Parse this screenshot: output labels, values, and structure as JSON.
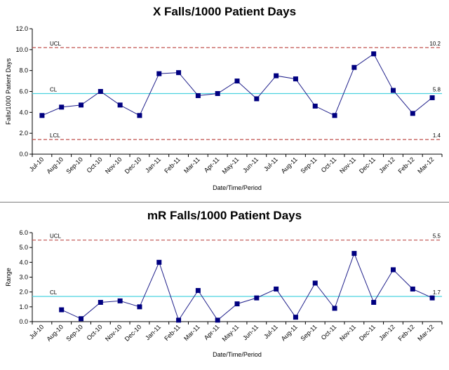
{
  "chart_data": [
    {
      "type": "line",
      "title": "X Falls/1000 Patient Days",
      "xlabel": "Date/Time/Period",
      "ylabel": "Falls/1000 Patient Days",
      "ylim": [
        0,
        12
      ],
      "yticks": [
        "0.0",
        "2.0",
        "4.0",
        "6.0",
        "8.0",
        "10.0",
        "12.0"
      ],
      "categories": [
        "Jul-10",
        "Aug-10",
        "Sep-10",
        "Oct-10",
        "Nov-10",
        "Dec-10",
        "Jan-11",
        "Feb-11",
        "Mar-11",
        "Apr-11",
        "May-11",
        "Jun-11",
        "Jul-11",
        "Aug-11",
        "Sep-11",
        "Oct-11",
        "Nov-11",
        "Dec-11",
        "Jan-12",
        "Feb-12",
        "Mar-12"
      ],
      "values": [
        3.7,
        4.5,
        4.7,
        6.0,
        4.7,
        3.7,
        7.7,
        7.8,
        5.6,
        5.8,
        7.0,
        5.3,
        7.5,
        7.2,
        4.6,
        3.7,
        8.3,
        9.6,
        6.1,
        3.9,
        5.4
      ],
      "limits": [
        {
          "name": "UCL",
          "value": 10.2,
          "label": "10.2",
          "style": "dashed",
          "color": "#c0504d"
        },
        {
          "name": "CL",
          "value": 5.8,
          "label": "5.8",
          "style": "solid",
          "color": "#4bd2e0"
        },
        {
          "name": "LCL",
          "value": 1.4,
          "label": "1.4",
          "style": "dashed",
          "color": "#c0504d"
        }
      ],
      "line_color": "#1f1f8a",
      "marker_color": "#000080",
      "grid": false
    },
    {
      "type": "line",
      "title": "mR Falls/1000 Patient Days",
      "xlabel": "Date/Time/Period",
      "ylabel": "Range",
      "ylim": [
        0,
        6
      ],
      "yticks": [
        "0.0",
        "1.0",
        "2.0",
        "3.0",
        "4.0",
        "5.0",
        "6.0"
      ],
      "categories": [
        "Jul-10",
        "Aug-10",
        "Sep-10",
        "Oct-10",
        "Nov-10",
        "Dec-10",
        "Jan-11",
        "Feb-11",
        "Mar-11",
        "Apr-11",
        "May-11",
        "Jun-11",
        "Jul-11",
        "Aug-11",
        "Sep-11",
        "Oct-11",
        "Nov-11",
        "Dec-11",
        "Jan-12",
        "Feb-12",
        "Mar-12"
      ],
      "values": [
        null,
        0.8,
        0.2,
        1.3,
        1.4,
        1.0,
        4.0,
        0.1,
        2.1,
        0.1,
        1.2,
        1.6,
        2.2,
        0.3,
        2.6,
        0.9,
        4.6,
        1.3,
        3.5,
        2.2,
        1.6
      ],
      "limits": [
        {
          "name": "UCL",
          "value": 5.5,
          "label": "5.5",
          "style": "dashed",
          "color": "#c0504d"
        },
        {
          "name": "CL",
          "value": 1.7,
          "label": "1.7",
          "style": "solid",
          "color": "#4bd2e0"
        }
      ],
      "line_color": "#1f1f8a",
      "marker_color": "#000080",
      "grid": false
    }
  ]
}
